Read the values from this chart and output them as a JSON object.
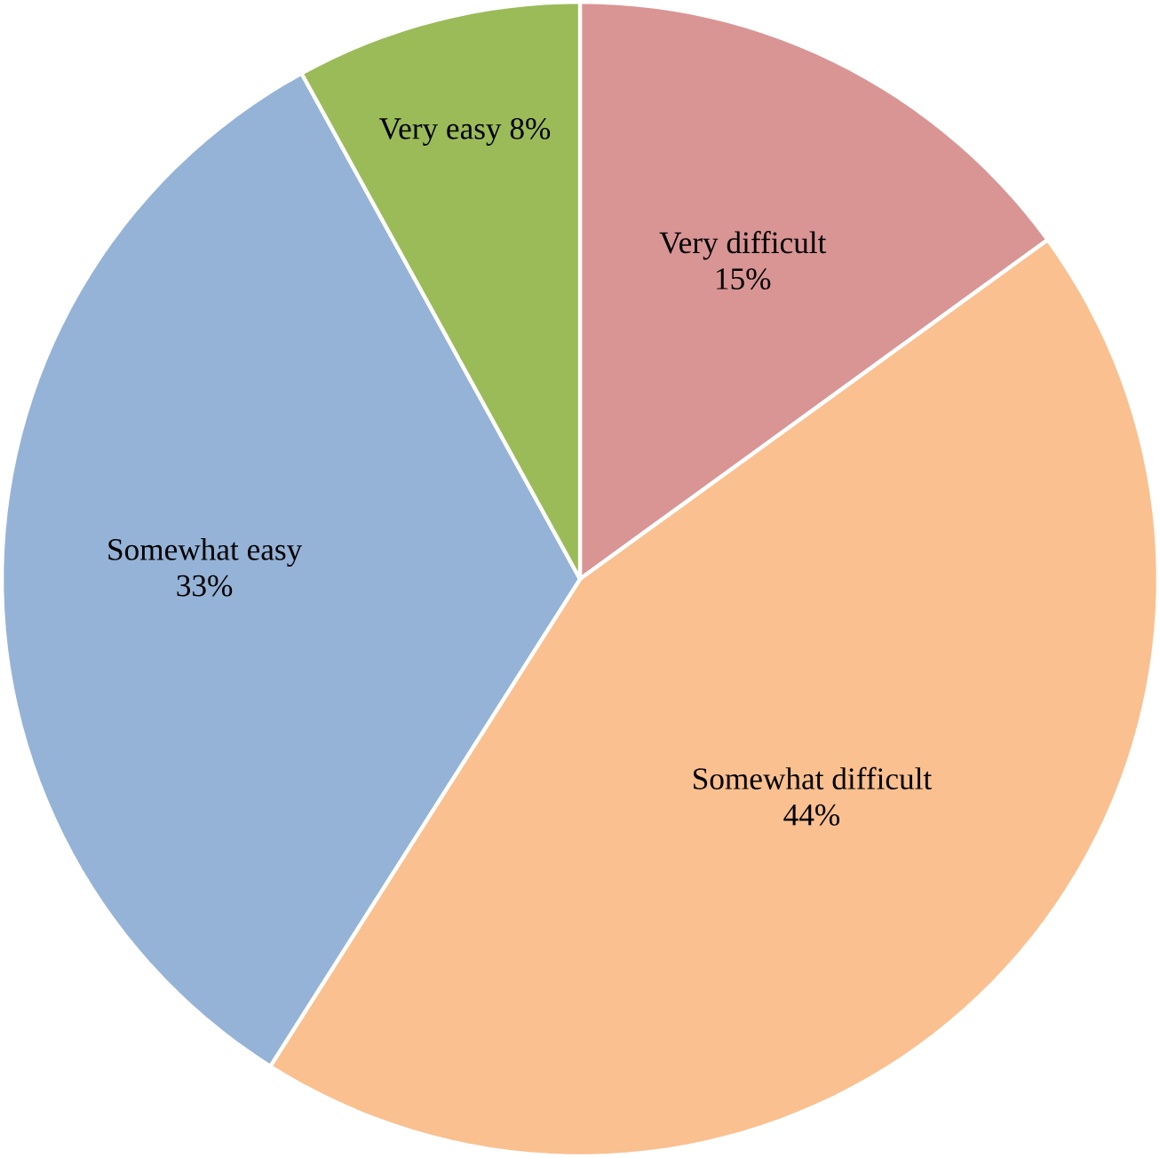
{
  "chart_data": {
    "type": "pie",
    "categories": [
      "Very difficult",
      "Somewhat difficult",
      "Somewhat easy",
      "Very easy"
    ],
    "values": [
      15,
      44,
      33,
      8
    ],
    "colors": [
      "#d99594",
      "#fac090",
      "#95b3d7",
      "#9bbb59"
    ],
    "value_labels": [
      "15%",
      "44%",
      "33%",
      "8%"
    ]
  }
}
